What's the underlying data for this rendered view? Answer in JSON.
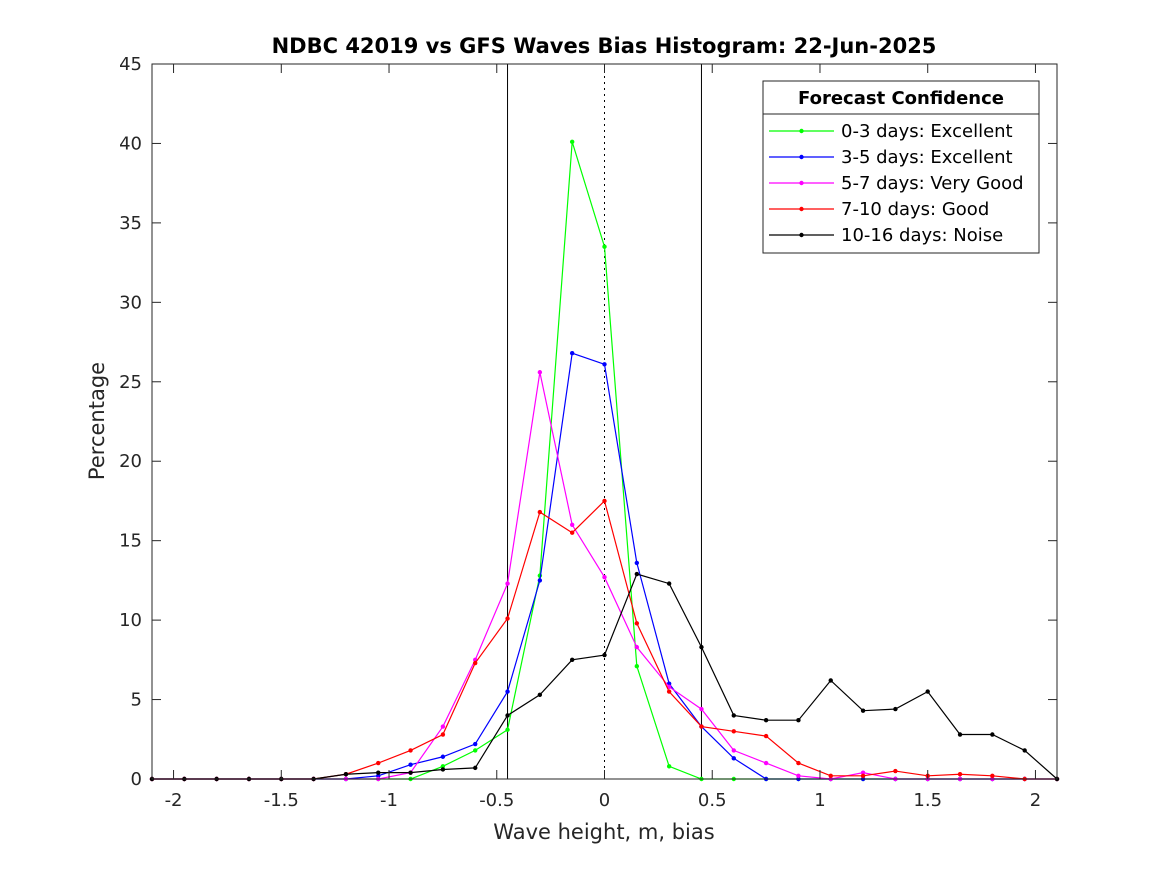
{
  "chart_data": {
    "type": "line",
    "title": "NDBC 42019 vs GFS Waves Bias Histogram: 22-Jun-2025",
    "xlabel": "Wave height, m, bias",
    "ylabel": "Percentage",
    "xlim": [
      -2.1,
      2.1
    ],
    "ylim": [
      0,
      45
    ],
    "xticks": [
      -2,
      -1.5,
      -1,
      -0.5,
      0,
      0.5,
      1,
      1.5,
      2
    ],
    "xtick_labels": [
      "-2",
      "-1.5",
      "-1",
      "-0.5",
      "0",
      "0.5",
      "1",
      "1.5",
      "2"
    ],
    "yticks": [
      0,
      5,
      10,
      15,
      20,
      25,
      30,
      35,
      40,
      45
    ],
    "ytick_labels": [
      "0",
      "5",
      "10",
      "15",
      "20",
      "25",
      "30",
      "35",
      "40",
      "45"
    ],
    "grid": false,
    "reference_lines": {
      "solid": [
        -0.45,
        0.45
      ],
      "dotted": [
        0
      ]
    },
    "legend": {
      "title": "Forecast Confidence",
      "location": "top-right"
    },
    "x": [
      -2.1,
      -1.95,
      -1.8,
      -1.65,
      -1.5,
      -1.35,
      -1.2,
      -1.05,
      -0.9,
      -0.75,
      -0.6,
      -0.45,
      -0.3,
      -0.15,
      0,
      0.15,
      0.3,
      0.45,
      0.6,
      0.75,
      0.9,
      1.05,
      1.2,
      1.35,
      1.5,
      1.65,
      1.8,
      1.95,
      2.1
    ],
    "series": [
      {
        "name": "0-3 days: Excellent",
        "color": "#00ff00",
        "values": [
          0,
          0,
          0,
          0,
          0,
          0,
          0,
          0,
          0,
          0.8,
          1.8,
          3.1,
          12.8,
          40.1,
          33.5,
          7.1,
          0.8,
          0,
          0,
          0,
          0,
          0,
          0,
          0,
          0,
          0,
          0,
          0,
          0
        ]
      },
      {
        "name": "3-5 days: Excellent",
        "color": "#0000ff",
        "values": [
          0,
          0,
          0,
          0,
          0,
          0,
          0,
          0.2,
          0.9,
          1.4,
          2.2,
          5.5,
          12.5,
          26.8,
          26.1,
          13.6,
          6.0,
          3.3,
          1.3,
          0,
          0,
          0,
          0,
          0,
          0,
          0,
          0,
          0,
          0
        ]
      },
      {
        "name": "5-7 days: Very Good",
        "color": "#ff00ff",
        "values": [
          0,
          0,
          0,
          0,
          0,
          0,
          0,
          0,
          0.4,
          3.3,
          7.5,
          12.3,
          25.6,
          16.0,
          12.7,
          8.3,
          5.8,
          4.4,
          1.8,
          1.0,
          0.2,
          0,
          0.4,
          0,
          0,
          0,
          0,
          0,
          0
        ]
      },
      {
        "name": "7-10 days: Good",
        "color": "#ff0000",
        "values": [
          0,
          0,
          0,
          0,
          0,
          0,
          0.3,
          1.0,
          1.8,
          2.8,
          7.3,
          10.1,
          16.8,
          15.5,
          17.5,
          9.8,
          5.5,
          3.3,
          3.0,
          2.7,
          1.0,
          0.2,
          0.2,
          0.5,
          0.2,
          0.3,
          0.2,
          0,
          0
        ]
      },
      {
        "name": "10-16 days: Noise",
        "color": "#000000",
        "values": [
          0,
          0,
          0,
          0,
          0,
          0,
          0.3,
          0.4,
          0.4,
          0.6,
          0.7,
          4.0,
          5.3,
          7.5,
          7.8,
          12.9,
          12.3,
          8.3,
          4.0,
          3.7,
          3.7,
          6.2,
          4.3,
          4.4,
          5.5,
          2.8,
          2.8,
          1.8,
          0
        ]
      }
    ]
  }
}
